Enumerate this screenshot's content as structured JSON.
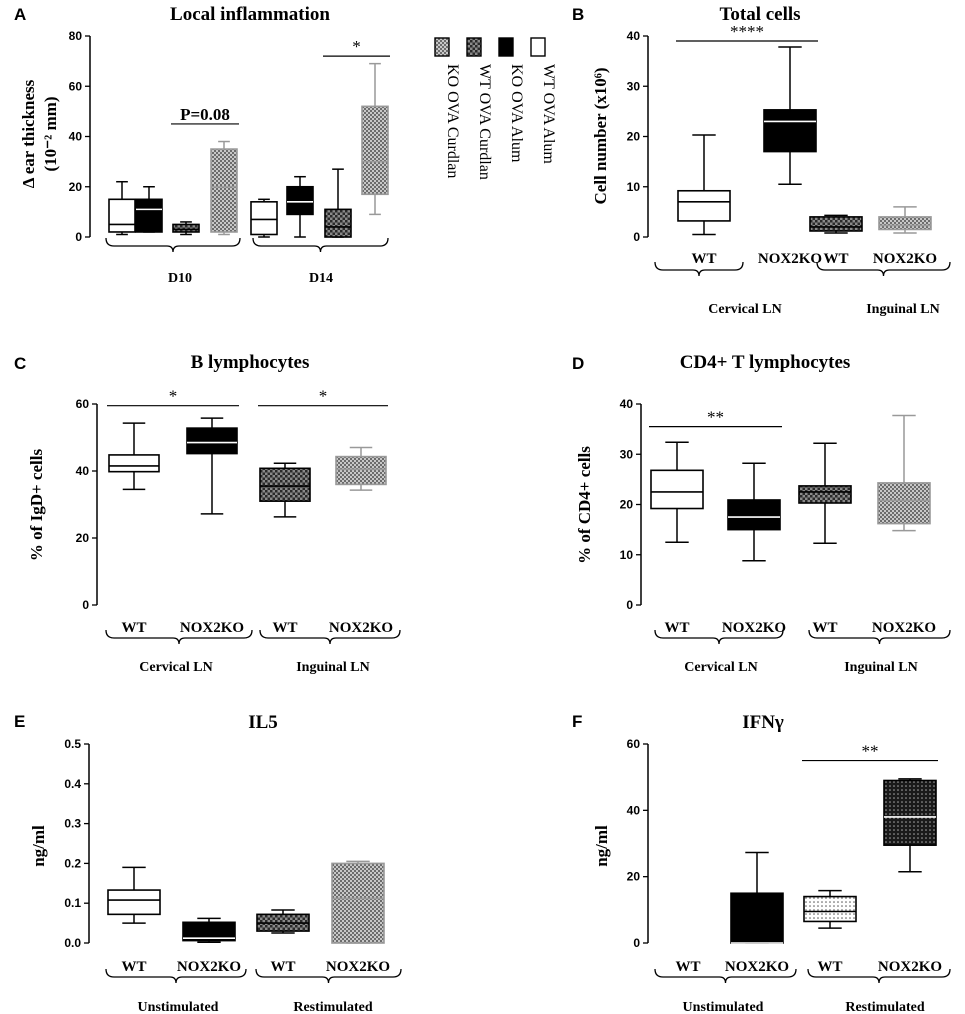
{
  "colors": {
    "ink": "#000000",
    "grey": "#999999",
    "white": "#ffffff"
  },
  "chart_data": [
    {
      "id": "A",
      "type": "box",
      "letter": "A",
      "title": "Local inflammation",
      "ylabel": [
        "Δ ear thickness",
        "(10⁻² mm)"
      ],
      "ylim": [
        0,
        80
      ],
      "yticks": [
        0,
        20,
        40,
        60,
        80
      ],
      "groups": [
        {
          "label": "D10",
          "span": [
            0,
            3
          ]
        },
        {
          "label": "D14",
          "span": [
            4,
            7
          ]
        }
      ],
      "legend": [
        "WT OVA Alum",
        "KO OVA Alum",
        "WT OVA Curdlan",
        "KO OVA Curdlan"
      ],
      "boxes": [
        {
          "series": "WT OVA Alum",
          "group": "D10",
          "fill": "white",
          "min": 1,
          "q1": 2,
          "median": 5,
          "q3": 15,
          "max": 22
        },
        {
          "series": "KO OVA Alum",
          "group": "D10",
          "fill": "black",
          "min": 2,
          "q1": 2,
          "median": 11,
          "q3": 15,
          "max": 20
        },
        {
          "series": "WT OVA Curdlan",
          "group": "D10",
          "fill": "checker",
          "min": 1,
          "q1": 2,
          "median": 3,
          "q3": 5,
          "max": 6
        },
        {
          "series": "KO OVA Curdlan",
          "group": "D10",
          "fill": "checker-light",
          "min": 1,
          "q1": 2,
          "median": 20,
          "q3": 35,
          "max": 38
        },
        {
          "series": "WT OVA Alum",
          "group": "D14",
          "fill": "white",
          "min": 0,
          "q1": 1,
          "median": 7,
          "q3": 14,
          "max": 15
        },
        {
          "series": "KO OVA Alum",
          "group": "D14",
          "fill": "black",
          "min": 0,
          "q1": 9,
          "median": 14,
          "q3": 20,
          "max": 24
        },
        {
          "series": "WT OVA Curdlan",
          "group": "D14",
          "fill": "checker",
          "min": 0,
          "q1": 0,
          "median": 4,
          "q3": 11,
          "max": 27
        },
        {
          "series": "KO OVA Curdlan",
          "group": "D14",
          "fill": "checker-light",
          "min": 9,
          "q1": 17,
          "median": 30,
          "q3": 52,
          "max": 69
        }
      ],
      "sig": [
        {
          "from": 2,
          "to": 3,
          "y": 45,
          "label": "P=0.08"
        },
        {
          "from": 6,
          "to": 7,
          "y": 72,
          "label": "*"
        }
      ]
    },
    {
      "id": "B",
      "type": "box",
      "letter": "B",
      "title": "Total cells",
      "ylabel": [
        "Cell number (x10⁶)"
      ],
      "ylim": [
        0,
        40
      ],
      "yticks": [
        0,
        10,
        20,
        30,
        40
      ],
      "categories": [
        "WT",
        "NOX2KO",
        "WT",
        "NOX2KO"
      ],
      "groups": [
        {
          "label": "Cervical LN",
          "span": [
            0,
            1
          ]
        },
        {
          "label": "Inguinal LN",
          "span": [
            2,
            3
          ]
        }
      ],
      "boxes": [
        {
          "fill": "white",
          "min": 0.5,
          "q1": 3.2,
          "median": 7,
          "q3": 9.2,
          "max": 20.3
        },
        {
          "fill": "black",
          "min": 10.5,
          "q1": 17,
          "median": 23,
          "q3": 25.3,
          "max": 37.8
        },
        {
          "fill": "checker",
          "min": 0.8,
          "q1": 1.2,
          "median": 2,
          "q3": 4,
          "max": 4.3
        },
        {
          "fill": "checker-light",
          "min": 0.8,
          "q1": 1.5,
          "median": 2.3,
          "q3": 4,
          "max": 6
        }
      ],
      "sig": [
        {
          "from": 0,
          "to": 1,
          "y": 39,
          "label": "****"
        }
      ]
    },
    {
      "id": "C",
      "type": "box",
      "letter": "C",
      "title": "B lymphocytes",
      "ylabel": [
        "% of IgD+ cells"
      ],
      "ylim": [
        0,
        60
      ],
      "yticks": [
        0,
        20,
        40,
        60
      ],
      "categories": [
        "WT",
        "NOX2KO",
        "WT",
        "NOX2KO"
      ],
      "groups": [
        {
          "label": "Cervical LN",
          "span": [
            0,
            1
          ]
        },
        {
          "label": "Inguinal LN",
          "span": [
            2,
            3
          ]
        }
      ],
      "boxes": [
        {
          "fill": "white",
          "min": 34.5,
          "q1": 39.8,
          "median": 41.5,
          "q3": 44.8,
          "max": 54.3
        },
        {
          "fill": "black",
          "min": 27.2,
          "q1": 45.2,
          "median": 48.5,
          "q3": 52.8,
          "max": 55.8
        },
        {
          "fill": "checker",
          "min": 26.3,
          "q1": 31,
          "median": 35.5,
          "q3": 40.8,
          "max": 42.3
        },
        {
          "fill": "checker-light",
          "min": 34.3,
          "q1": 36,
          "median": 40.5,
          "q3": 44.3,
          "max": 47
        }
      ],
      "sig": [
        {
          "from": 0,
          "to": 1,
          "y": 59.5,
          "label": "*"
        },
        {
          "from": 2,
          "to": 3,
          "y": 59.5,
          "label": "*"
        }
      ]
    },
    {
      "id": "D",
      "type": "box",
      "letter": "D",
      "title": "CD4+ T lymphocytes",
      "ylabel": [
        "% of CD4+ cells"
      ],
      "ylim": [
        0,
        40
      ],
      "yticks": [
        0,
        10,
        20,
        30,
        40
      ],
      "categories": [
        "WT",
        "NOX2KO",
        "WT",
        "NOX2KO"
      ],
      "groups": [
        {
          "label": "Cervical LN",
          "span": [
            0,
            1
          ]
        },
        {
          "label": "Inguinal LN",
          "span": [
            2,
            3
          ]
        }
      ],
      "boxes": [
        {
          "fill": "white",
          "min": 12.5,
          "q1": 19.2,
          "median": 22.5,
          "q3": 26.8,
          "max": 32.4
        },
        {
          "fill": "black",
          "min": 8.8,
          "q1": 15,
          "median": 17.5,
          "q3": 20.9,
          "max": 28.2
        },
        {
          "fill": "checker",
          "min": 12.3,
          "q1": 20.3,
          "median": 22.5,
          "q3": 23.7,
          "max": 32.2
        },
        {
          "fill": "checker-light",
          "min": 14.8,
          "q1": 16.2,
          "median": 20.8,
          "q3": 24.3,
          "max": 37.7
        }
      ],
      "sig": [
        {
          "from": 0,
          "to": 1,
          "y": 35.5,
          "label": "**"
        }
      ]
    },
    {
      "id": "E",
      "type": "box",
      "letter": "E",
      "title": "IL5",
      "ylabel": [
        "ng/ml"
      ],
      "ylim": [
        0,
        0.5
      ],
      "yticks": [
        0.0,
        0.1,
        0.2,
        0.3,
        0.4,
        0.5
      ],
      "ytick_labels": [
        "0.0",
        "0.1",
        "0.2",
        "0.3",
        "0.4",
        "0.5"
      ],
      "categories": [
        "WT",
        "NOX2KO",
        "WT",
        "NOX2KO"
      ],
      "groups": [
        {
          "label": "Unstimulated",
          "span": [
            0,
            1
          ]
        },
        {
          "label": "Restimulated",
          "span": [
            2,
            3
          ]
        }
      ],
      "boxes": [
        {
          "fill": "white",
          "min": 0.05,
          "q1": 0.072,
          "median": 0.108,
          "q3": 0.133,
          "max": 0.19
        },
        {
          "fill": "black",
          "min": 0.002,
          "q1": 0.006,
          "median": 0.012,
          "q3": 0.052,
          "max": 0.062
        },
        {
          "fill": "checker",
          "min": 0.025,
          "q1": 0.03,
          "median": 0.05,
          "q3": 0.072,
          "max": 0.083
        },
        {
          "fill": "checker-light",
          "min": 0.0,
          "q1": 0.0,
          "median": 0.112,
          "q3": 0.2,
          "max": 0.205
        }
      ],
      "sig": []
    },
    {
      "id": "F",
      "type": "box",
      "letter": "F",
      "title": "IFNγ",
      "ylabel": [
        "ng/ml"
      ],
      "ylim": [
        0,
        60
      ],
      "yticks": [
        0,
        20,
        40,
        60
      ],
      "categories": [
        "WT",
        "NOX2KO",
        "WT",
        "NOX2KO"
      ],
      "groups": [
        {
          "label": "Unstimulated",
          "span": [
            0,
            1
          ]
        },
        {
          "label": "Restimulated",
          "span": [
            2,
            3
          ]
        }
      ],
      "boxes": [
        null,
        {
          "fill": "black",
          "min": 0,
          "q1": 0,
          "median": 0,
          "q3": 15,
          "max": 27.3
        },
        {
          "fill": "dots",
          "min": 4.5,
          "q1": 6.5,
          "median": 9.5,
          "q3": 14,
          "max": 15.8
        },
        {
          "fill": "dots-dark",
          "min": 21.5,
          "q1": 29.5,
          "median": 38,
          "q3": 49,
          "max": 49.5
        }
      ],
      "sig": [
        {
          "from": 2,
          "to": 3,
          "y": 55,
          "label": "**"
        }
      ]
    }
  ]
}
